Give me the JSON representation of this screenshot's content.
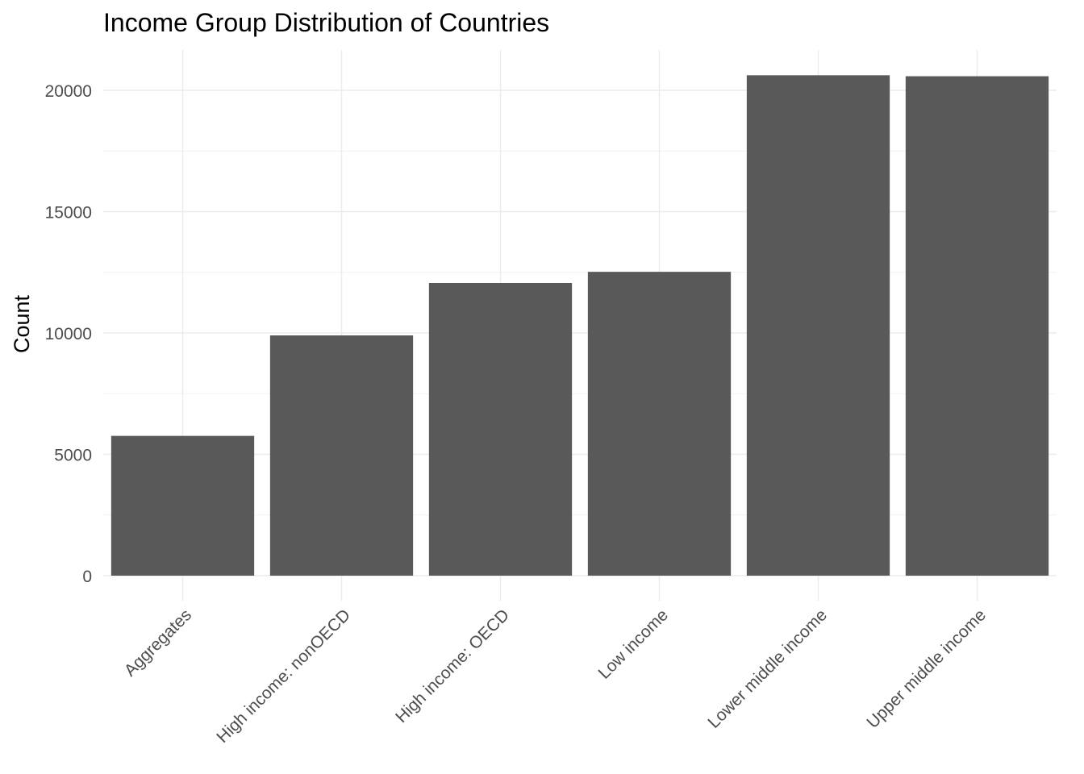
{
  "chart_data": {
    "type": "bar",
    "title": "Income Group Distribution of Countries",
    "xlabel": "",
    "ylabel": "Count",
    "categories": [
      "Aggregates",
      "High income: nonOECD",
      "High income: OECD",
      "Low income",
      "Lower middle income",
      "Upper middle income"
    ],
    "values": [
      5760,
      9900,
      12060,
      12520,
      20620,
      20580
    ],
    "ylim": [
      0,
      21500
    ],
    "yticks": [
      0,
      5000,
      10000,
      15000,
      20000
    ],
    "ytick_labels": [
      "0",
      "5000",
      "10000",
      "15000",
      "20000"
    ],
    "grid": true,
    "legend": "none",
    "colors": {
      "bar": "#595959",
      "grid_major": "#ebebeb",
      "grid_minor": "#f2f2f2",
      "tick_text": "#4d4d4d"
    }
  }
}
